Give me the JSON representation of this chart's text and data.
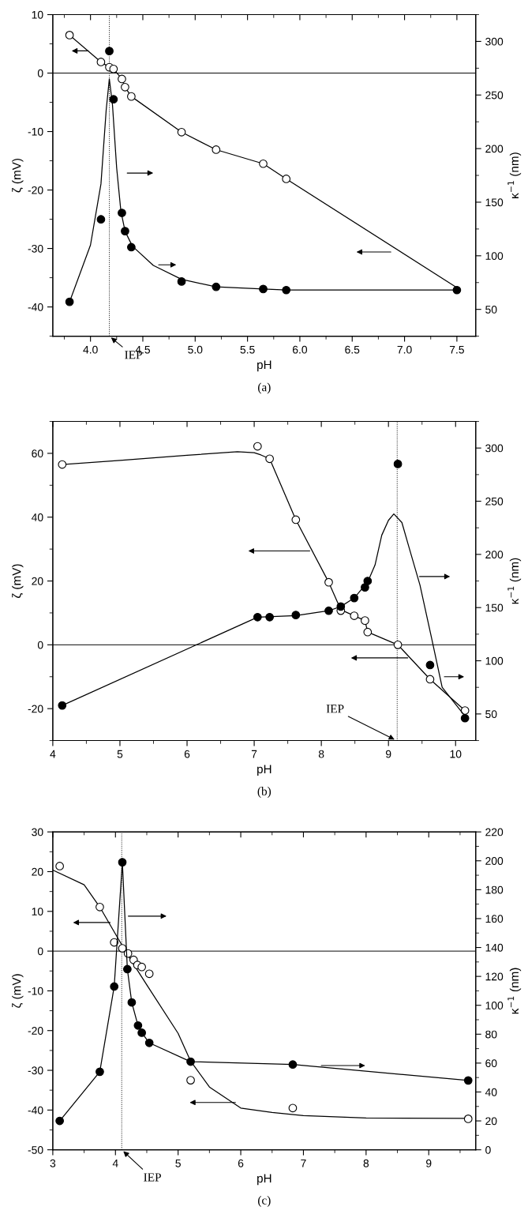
{
  "chart_data": [
    {
      "type": "scatter",
      "xlabel": "pH",
      "ylabel": "ζ (mV)",
      "y2label": "κ$^{−1}$ (nm)",
      "xlim": [
        3.64,
        7.68
      ],
      "xticks": [
        {
          "value": 4,
          "label": "4.0"
        },
        4.5,
        {
          "value": 5,
          "label": "5.0"
        },
        5.5,
        {
          "value": 6,
          "label": "6.0"
        },
        6.5,
        {
          "value": 7,
          "label": "7.0"
        },
        7.5
      ],
      "ylim": [
        -45,
        10
      ],
      "yticks": [
        -40,
        -30,
        -20,
        -10,
        0,
        10
      ],
      "y2lim": [
        25,
        325
      ],
      "y2ticks": [
        50,
        100,
        150,
        200,
        250,
        300
      ],
      "grid": false,
      "legend": false,
      "ref_lines": [
        {
          "axis": "y",
          "value": 0,
          "line_style": "solid"
        },
        {
          "axis": "x",
          "value": 4.18,
          "line_style": "dotted"
        }
      ],
      "annotations": [
        "(a)",
        {
          "text": "IEP",
          "x": 4.18,
          "y": -45
        }
      ],
      "series": [
        {
          "type": "line",
          "color": "#000000",
          "x": [
            3.8,
            4.1,
            4.18,
            4.22,
            4.3,
            4.33,
            4.39,
            4.87,
            5.2,
            5.65,
            5.87,
            7.5
          ],
          "values": [
            6.5,
            1.9,
            1.0,
            0.7,
            -1.0,
            -2.4,
            -4.0,
            -10.1,
            -13.1,
            -15.5,
            -18.1,
            -36.7
          ]
        },
        {
          "color": "#ffffff",
          "marker": "circle",
          "x": [
            3.8,
            4.1,
            4.18,
            4.22,
            4.3,
            4.33,
            4.39,
            4.87,
            5.2,
            5.65,
            5.87
          ],
          "values": [
            6.5,
            1.9,
            1.0,
            0.7,
            -1.0,
            -2.4,
            -4.0,
            -10.1,
            -13.1,
            -15.5,
            -18.1
          ]
        },
        {
          "type": "line",
          "axis": "y2",
          "color": "#000000",
          "x": [
            3.8,
            4.0,
            4.1,
            4.15,
            4.18,
            4.21,
            4.25,
            4.29,
            4.33,
            4.4,
            4.6,
            4.87,
            5.2,
            5.65,
            5.87,
            7.5
          ],
          "values": [
            57,
            110,
            167,
            236,
            265,
            241,
            182,
            142,
            123,
            109,
            91,
            78,
            71,
            69,
            68,
            68
          ]
        },
        {
          "axis": "y2",
          "color": "#000000",
          "marker": "circle",
          "x": [
            3.8,
            4.1,
            4.18,
            4.22,
            4.3,
            4.33,
            4.39,
            4.87,
            5.2,
            5.65,
            5.87,
            7.5
          ],
          "values": [
            57,
            134,
            291,
            246,
            140,
            123,
            108,
            76,
            71,
            69,
            68,
            68
          ]
        }
      ]
    },
    {
      "type": "scatter",
      "xlabel": "pH",
      "ylabel": "ζ (mV)",
      "y2label": "κ$^{−1}$ (nm)",
      "xlim": [
        4,
        10.3
      ],
      "xticks": [
        4,
        5,
        6,
        7,
        8,
        9,
        10
      ],
      "ylim": [
        -30,
        70
      ],
      "yticks": [
        -20,
        0,
        20,
        40,
        60
      ],
      "y2lim": [
        25,
        325
      ],
      "y2ticks": [
        50,
        100,
        150,
        200,
        250,
        300
      ],
      "grid": false,
      "legend": false,
      "ref_lines": [
        {
          "axis": "y",
          "value": 0,
          "line_style": "solid"
        },
        {
          "axis": "x",
          "value": 9.13,
          "line_style": "dotted"
        }
      ],
      "annotations": [
        "(b)",
        {
          "text": "IEP",
          "x": 9.12,
          "y": -30
        }
      ],
      "series": [
        {
          "type": "line",
          "color": "#000000",
          "x": [
            4.14,
            5.0,
            6.0,
            6.75,
            7.0,
            7.1,
            7.23,
            7.62,
            8.11,
            8.29,
            8.49,
            8.65,
            8.69,
            9.14,
            9.62,
            10.14
          ],
          "values": [
            56.5,
            57.8,
            59.4,
            60.5,
            60.2,
            59.5,
            58.3,
            39.2,
            19.6,
            11.0,
            9.1,
            7.6,
            4.0,
            0,
            -10.8,
            -20.6
          ]
        },
        {
          "color": "#ffffff",
          "marker": "circle",
          "x": [
            4.14,
            7.05,
            7.23,
            7.62,
            8.11,
            8.29,
            8.49,
            8.65,
            8.69,
            9.14,
            9.62,
            10.14
          ],
          "values": [
            56.5,
            62.2,
            58.3,
            39.2,
            19.6,
            10.7,
            9.1,
            7.6,
            4.0,
            0,
            -10.8,
            -20.6
          ]
        },
        {
          "type": "line",
          "axis": "y2",
          "color": "#000000",
          "x": [
            4.14,
            7.05,
            7.62,
            8.11,
            8.29,
            8.49,
            8.69,
            8.8,
            8.9,
            9.0,
            9.08,
            9.2,
            9.3,
            9.47,
            9.64,
            9.8,
            10.14
          ],
          "values": [
            58,
            141,
            142.5,
            147,
            151,
            159,
            174,
            190,
            218,
            232,
            238,
            230,
            208,
            171,
            122,
            75,
            48
          ]
        },
        {
          "axis": "y2",
          "color": "#000000",
          "marker": "circle",
          "x": [
            4.14,
            7.05,
            7.23,
            7.62,
            8.11,
            8.29,
            8.49,
            8.65,
            8.69,
            9.14,
            9.62,
            10.14
          ],
          "values": [
            58,
            141,
            141,
            143,
            147,
            151,
            159,
            169,
            175,
            285,
            96,
            46
          ]
        }
      ]
    },
    {
      "type": "scatter",
      "xlabel": "pH",
      "ylabel": "ζ (mV)",
      "y2label": "κ$^{−1}$ (nm)",
      "xlim": [
        3,
        9.75
      ],
      "xticks": [
        3,
        4,
        5,
        6,
        7,
        8,
        9
      ],
      "ylim": [
        -50,
        30
      ],
      "yticks": [
        -50,
        -40,
        -30,
        -20,
        -10,
        0,
        10,
        20,
        30
      ],
      "y2lim": [
        0,
        220
      ],
      "y2ticks": [
        0,
        20,
        40,
        60,
        80,
        100,
        120,
        140,
        160,
        180,
        200,
        220
      ],
      "grid": false,
      "legend": false,
      "ref_lines": [
        {
          "axis": "y",
          "value": 0,
          "line_style": "solid"
        },
        {
          "axis": "x",
          "value": 4.1,
          "line_style": "dotted"
        }
      ],
      "annotations": [
        "(c)",
        {
          "text": "IEP",
          "x": 4.1,
          "y": -50
        }
      ],
      "series": [
        {
          "type": "line",
          "color": "#000000",
          "x": [
            3.0,
            3.5,
            3.75,
            4.0,
            4.2,
            4.5,
            5.0,
            5.2,
            5.5,
            6.0,
            6.5,
            7.0,
            8.0,
            9.63
          ],
          "values": [
            20.4,
            16.7,
            11.1,
            4.3,
            -1.1,
            -8.5,
            -20.7,
            -27.7,
            -34.2,
            -39.5,
            -40.6,
            -41.4,
            -42.0,
            -42.1
          ]
        },
        {
          "color": "#ffffff",
          "marker": "circle",
          "x": [
            3.11,
            3.75,
            3.98,
            4.11,
            4.2,
            4.29,
            4.35,
            4.42,
            4.54,
            5.2,
            6.83,
            9.63
          ],
          "values": [
            21.4,
            11.1,
            2.2,
            0.7,
            -0.6,
            -2.2,
            -3.5,
            -4.0,
            -5.7,
            -32.5,
            -39.5,
            -42.2
          ]
        },
        {
          "type": "line",
          "axis": "y2",
          "color": "#000000",
          "x": [
            3.11,
            3.75,
            3.98,
            4.11,
            4.19,
            4.26,
            4.36,
            4.42,
            4.54,
            5.2,
            6.83,
            9.63
          ],
          "values": [
            20,
            54,
            113,
            199,
            125,
            102,
            86,
            81,
            74,
            61,
            59,
            48
          ]
        },
        {
          "axis": "y2",
          "color": "#000000",
          "marker": "circle",
          "x": [
            3.11,
            3.75,
            3.98,
            4.11,
            4.19,
            4.26,
            4.36,
            4.42,
            4.54,
            5.2,
            6.83,
            9.63
          ],
          "values": [
            20,
            54,
            113,
            199,
            125,
            102,
            86,
            81,
            74,
            61,
            59,
            48
          ]
        }
      ]
    }
  ]
}
